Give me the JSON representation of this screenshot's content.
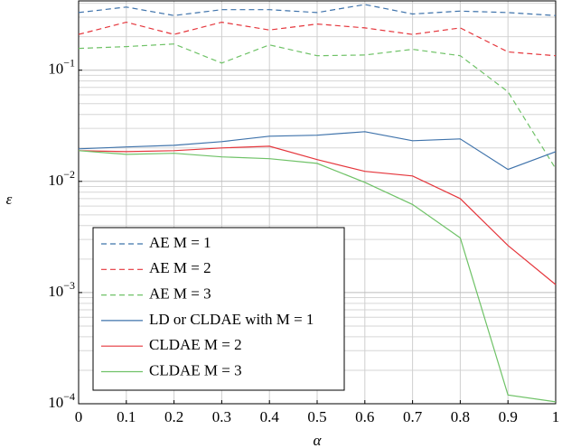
{
  "chart_data": {
    "type": "line",
    "x_label": "α",
    "y_label": "ε",
    "x": [
      0,
      0.1,
      0.2,
      0.3,
      0.4,
      0.5,
      0.6,
      0.7,
      0.8,
      0.9,
      1
    ],
    "xlim": [
      0,
      1
    ],
    "xticks": [
      0,
      0.1,
      0.2,
      0.3,
      0.4,
      0.5,
      0.6,
      0.7,
      0.8,
      0.9,
      1
    ],
    "ylim": [
      0.0001,
      0.42
    ],
    "log_y": true,
    "grid": true,
    "y_minor_grid": true,
    "yticks": [
      {
        "value": 0.0001,
        "label": "10−4"
      },
      {
        "value": 0.001,
        "label": "10−3"
      },
      {
        "value": 0.01,
        "label": "10−2"
      },
      {
        "value": 0.1,
        "label": "10−1"
      }
    ],
    "legend": "lower left",
    "series": [
      {
        "name": "AE M = 1",
        "color": "#3f73ab",
        "dashed": true,
        "values": [
          0.33,
          0.37,
          0.31,
          0.35,
          0.35,
          0.33,
          0.39,
          0.32,
          0.34,
          0.33,
          0.31
        ]
      },
      {
        "name": "AE M = 2",
        "color": "#e5363c",
        "dashed": true,
        "values": [
          0.21,
          0.27,
          0.21,
          0.27,
          0.23,
          0.26,
          0.24,
          0.21,
          0.24,
          0.146,
          0.135
        ]
      },
      {
        "name": "AE M = 3",
        "color": "#6fc267",
        "dashed": true,
        "values": [
          0.157,
          0.163,
          0.172,
          0.116,
          0.169,
          0.135,
          0.137,
          0.154,
          0.135,
          0.064,
          0.013
        ]
      },
      {
        "name": "LD or CLDAE with M = 1",
        "color": "#3f73ab",
        "dashed": false,
        "values": [
          0.0196,
          0.0204,
          0.0211,
          0.0228,
          0.0255,
          0.026,
          0.028,
          0.0232,
          0.0241,
          0.0128,
          0.0185
        ]
      },
      {
        "name": "CLDAE M = 2",
        "color": "#e5363c",
        "dashed": false,
        "values": [
          0.0189,
          0.0185,
          0.0189,
          0.02,
          0.0207,
          0.0157,
          0.0123,
          0.0112,
          0.007,
          0.00265,
          0.00118
        ]
      },
      {
        "name": "CLDAE M = 3",
        "color": "#6fc267",
        "dashed": false,
        "values": [
          0.0189,
          0.0175,
          0.0179,
          0.0166,
          0.016,
          0.0145,
          0.0098,
          0.0062,
          0.0031,
          0.00012,
          0.000104
        ]
      }
    ]
  }
}
